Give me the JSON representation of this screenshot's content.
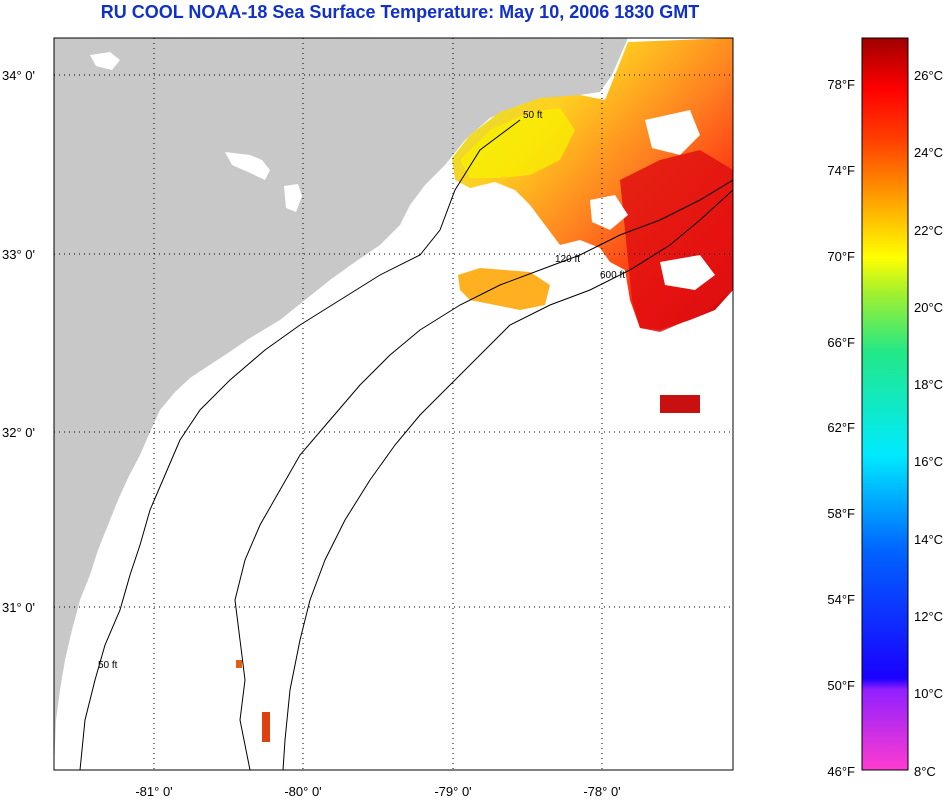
{
  "title": "RU COOL  NOAA-18  Sea Surface Temperature:  May 10, 2006 1830 GMT",
  "lat_labels": [
    "34° 0'",
    "33° 0'",
    "32° 0'",
    "31° 0'"
  ],
  "lon_labels": [
    "-81° 0'",
    "-80° 0'",
    "-79° 0'",
    "-78° 0'"
  ],
  "contour_labels": [
    "50 ft",
    "120 ft",
    "600 ft"
  ],
  "colorbar": {
    "fahrenheit": [
      "78°F",
      "74°F",
      "70°F",
      "66°F",
      "62°F",
      "58°F",
      "54°F",
      "50°F",
      "46°F"
    ],
    "celsius": [
      "26°C",
      "24°C",
      "22°C",
      "20°C",
      "18°C",
      "16°C",
      "14°C",
      "12°C",
      "10°C",
      "8°C"
    ]
  },
  "colors": {
    "title": "#1030c8",
    "land": "#c8c8c8",
    "ocean_nodata": "#ffffff"
  }
}
